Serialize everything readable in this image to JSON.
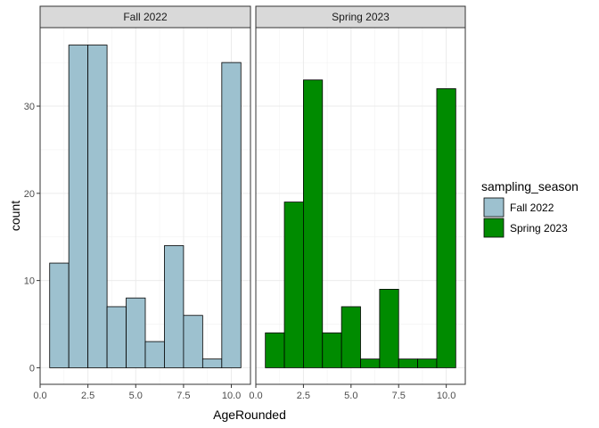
{
  "chart_data": {
    "type": "bar",
    "subtype": "faceted-histogram",
    "xlabel": "AgeRounded",
    "ylabel": "count",
    "xlim": [
      0,
      11
    ],
    "ylim": [
      0,
      38
    ],
    "x_ticks": [
      "0.0",
      "2.5",
      "5.0",
      "7.5",
      "10.0"
    ],
    "y_ticks": [
      "0",
      "10",
      "20",
      "30"
    ],
    "grid": true,
    "bin_centers": [
      1,
      2,
      3,
      4,
      5,
      6,
      7,
      8,
      9,
      10
    ],
    "bin_width": 1,
    "legend": {
      "title": "sampling_season",
      "position": "right"
    },
    "series": [
      {
        "name": "Fall 2022",
        "color": "#9dc1cf",
        "values": [
          12,
          37,
          37,
          7,
          8,
          3,
          14,
          6,
          1,
          35
        ]
      },
      {
        "name": "Spring 2023",
        "color": "#008b00",
        "values": [
          4,
          19,
          33,
          4,
          7,
          1,
          9,
          1,
          1,
          32
        ]
      }
    ]
  }
}
